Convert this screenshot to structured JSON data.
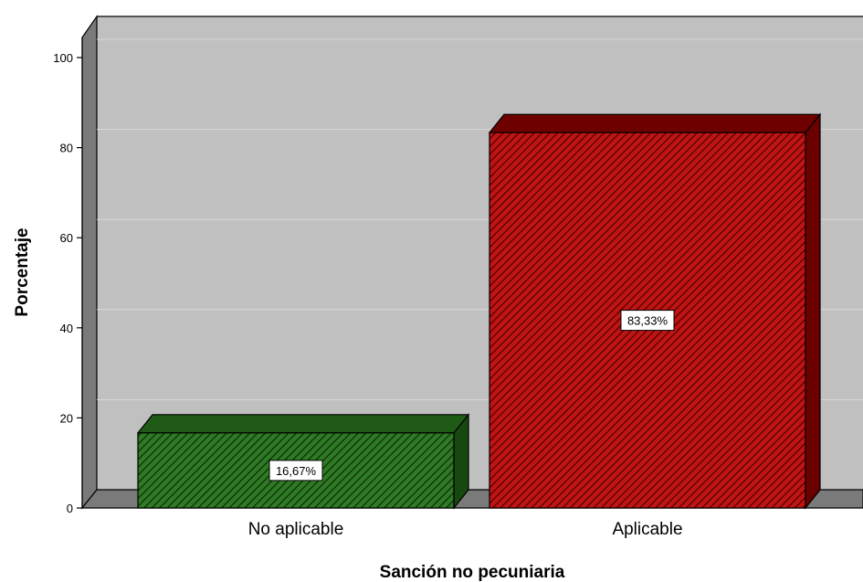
{
  "chart_data": {
    "type": "bar",
    "categories": [
      "No aplicable",
      "Aplicable"
    ],
    "values": [
      16.67,
      83.33
    ],
    "data_labels": [
      "16,67%",
      "83,33%"
    ],
    "colors": [
      "#1f5c1a",
      "#a50b0b"
    ],
    "xlabel": "Sanción no pecuniaria",
    "ylabel": "Porcentaje",
    "ylim": [
      0,
      100
    ],
    "yticks": [
      "0",
      "20",
      "40",
      "60",
      "80",
      "100"
    ],
    "grid": true,
    "style": "3d-hatched",
    "legend": "none"
  }
}
